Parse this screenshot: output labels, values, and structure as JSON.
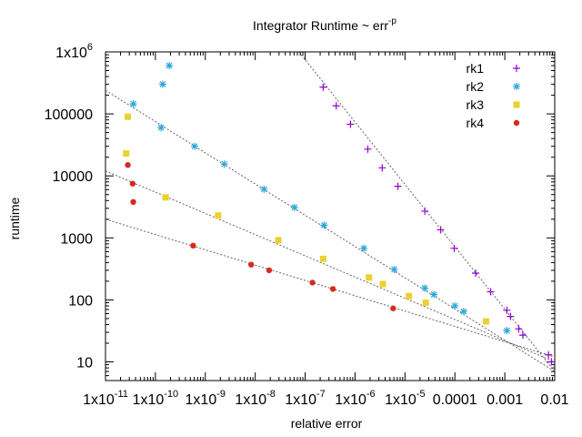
{
  "chart_data": {
    "type": "scatter",
    "title": "Integrator Runtime ~ err",
    "title_superscript": "-p",
    "xlabel": "relative error",
    "ylabel": "runtime",
    "x_scale": "log",
    "y_scale": "log",
    "xlim": [
      1e-11,
      0.01
    ],
    "ylim": [
      5,
      1000000
    ],
    "x_tick_values": [
      1e-11,
      1e-10,
      1e-09,
      1e-08,
      1e-07,
      1e-06,
      1e-05,
      0.0001,
      0.001,
      0.01
    ],
    "x_ticks": [
      {
        "base": "1x10",
        "exp": "-11"
      },
      {
        "base": "1x10",
        "exp": "-10"
      },
      {
        "base": "1x10",
        "exp": "-9"
      },
      {
        "base": "1x10",
        "exp": "-8"
      },
      {
        "base": "1x10",
        "exp": "-7"
      },
      {
        "base": "1x10",
        "exp": "-6"
      },
      {
        "base": "1x10",
        "exp": "-5"
      },
      {
        "base": "0.0001",
        "exp": ""
      },
      {
        "base": "0.001",
        "exp": ""
      },
      {
        "base": "0.01",
        "exp": ""
      }
    ],
    "y_tick_values": [
      10,
      100,
      1000,
      10000,
      100000,
      1000000
    ],
    "y_ticks": [
      {
        "base": "10",
        "exp": ""
      },
      {
        "base": "100",
        "exp": ""
      },
      {
        "base": "1000",
        "exp": ""
      },
      {
        "base": "10000",
        "exp": ""
      },
      {
        "base": "100000",
        "exp": ""
      },
      {
        "base": "1x10",
        "exp": "6"
      }
    ],
    "grid": false,
    "legend_position": "top-right",
    "series": [
      {
        "name": "rk1",
        "marker": "plus",
        "color": "#9400d3",
        "points": [
          [
            2.3e-07,
            270000
          ],
          [
            4.2e-07,
            135000
          ],
          [
            8.1e-07,
            68000
          ],
          [
            1.8e-06,
            27000
          ],
          [
            3.5e-06,
            13500
          ],
          [
            7.2e-06,
            6800
          ],
          [
            2.5e-05,
            2700
          ],
          [
            5.2e-05,
            1350
          ],
          [
            9.7e-05,
            680
          ],
          [
            0.00026,
            270
          ],
          [
            0.00052,
            135
          ],
          [
            0.0011,
            68
          ],
          [
            0.0013,
            54
          ],
          [
            0.0019,
            34
          ],
          [
            0.0023,
            27
          ],
          [
            0.0075,
            13
          ],
          [
            0.0086,
            10
          ]
        ],
        "fit": [
          [
            7.5e-08,
            1000000
          ],
          [
            0.01,
            7
          ]
        ]
      },
      {
        "name": "rk2",
        "marker": "star",
        "color": "#2ba7d8",
        "points": [
          [
            1.9e-10,
            600000
          ],
          [
            1.4e-10,
            300000
          ],
          [
            3.6e-11,
            145000
          ],
          [
            1.3e-10,
            60000
          ],
          [
            6.1e-10,
            30000
          ],
          [
            2.4e-09,
            15500
          ],
          [
            1.5e-08,
            6100
          ],
          [
            6.1e-08,
            3100
          ],
          [
            2.4e-07,
            1600
          ],
          [
            1.5e-06,
            680
          ],
          [
            6.1e-06,
            310
          ],
          [
            2.5e-05,
            155
          ],
          [
            3.8e-05,
            122
          ],
          [
            0.0001,
            80
          ],
          [
            0.00015,
            65
          ],
          [
            0.0011,
            32
          ]
        ],
        "fit": [
          [
            1e-11,
            240000
          ],
          [
            0.01,
            7
          ]
        ]
      },
      {
        "name": "rk3",
        "marker": "square",
        "color": "#ead12f",
        "points": [
          [
            2.8e-11,
            90000
          ],
          [
            2.6e-11,
            23000
          ],
          [
            1.6e-10,
            4500
          ],
          [
            1.8e-09,
            2300
          ],
          [
            2.9e-08,
            920
          ],
          [
            2.3e-07,
            460
          ],
          [
            1.9e-06,
            230
          ],
          [
            3.6e-06,
            180
          ],
          [
            1.2e-05,
            115
          ],
          [
            2.6e-05,
            90
          ],
          [
            0.00042,
            45
          ]
        ],
        "fit": [
          [
            1e-11,
            12000
          ],
          [
            0.01,
            10
          ]
        ]
      },
      {
        "name": "rk4",
        "marker": "circle",
        "color": "#d62b1e",
        "points": [
          [
            2.8e-11,
            15000
          ],
          [
            3.5e-11,
            7500
          ],
          [
            3.6e-11,
            3800
          ],
          [
            5.7e-10,
            750
          ],
          [
            8.3e-09,
            370
          ],
          [
            1.9e-08,
            300
          ],
          [
            1.4e-07,
            190
          ],
          [
            3.6e-07,
            150
          ],
          [
            5.8e-06,
            73
          ]
        ],
        "fit": [
          [
            1e-11,
            2000
          ],
          [
            0.01,
            12
          ]
        ]
      }
    ]
  }
}
